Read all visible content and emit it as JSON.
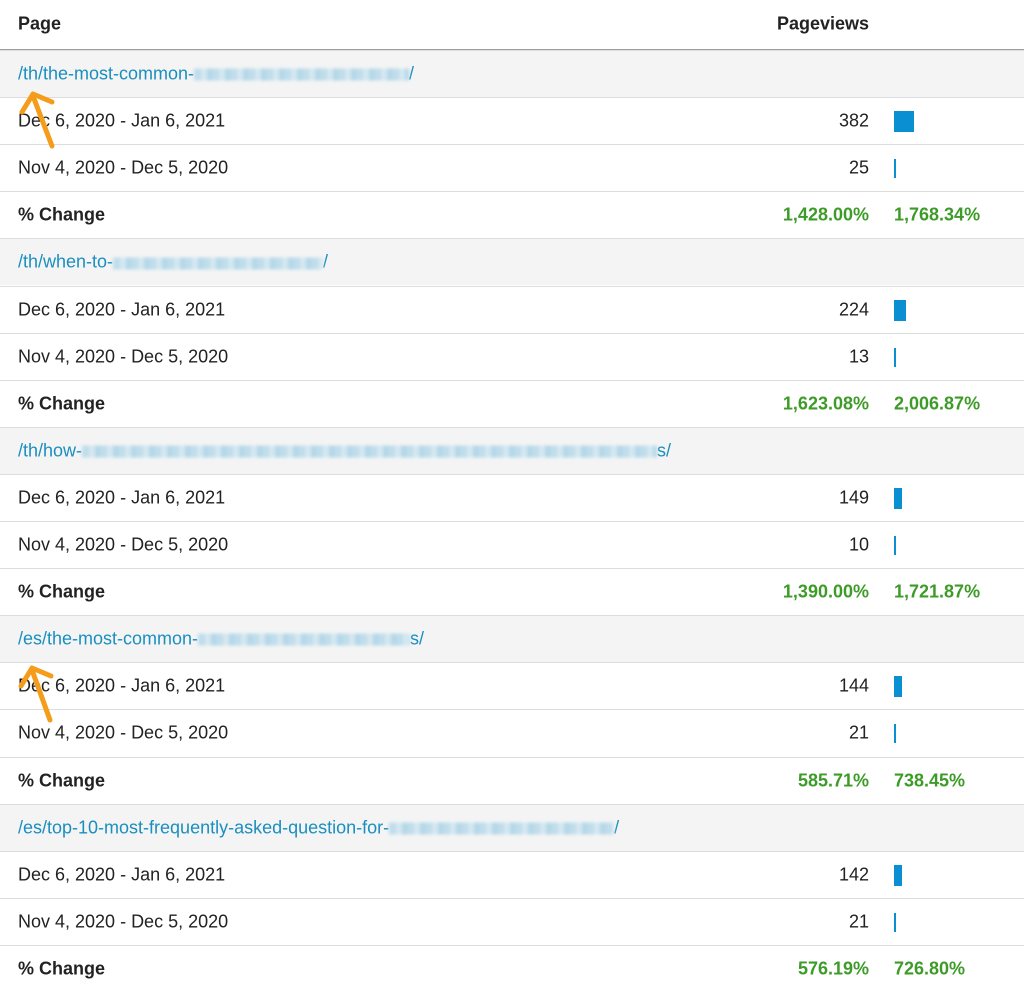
{
  "header": {
    "page": "Page",
    "pageviews": "Pageviews"
  },
  "groups": [
    {
      "path_start": "/th/the-most-common-",
      "path_end": "/",
      "rows": [
        {
          "date_range": "Dec 6, 2020 - Jan 6, 2021",
          "pageviews": 382
        },
        {
          "date_range": "Nov 4, 2020 - Dec 5, 2020",
          "pageviews": 25
        }
      ],
      "change": {
        "label": "% Change",
        "values": [
          "1,428.00%",
          "1,768.34%"
        ]
      }
    },
    {
      "path_start": "/th/when-to-",
      "path_end": "/",
      "rows": [
        {
          "date_range": "Dec 6, 2020 - Jan 6, 2021",
          "pageviews": 224
        },
        {
          "date_range": "Nov 4, 2020 - Dec 5, 2020",
          "pageviews": 13
        }
      ],
      "change": {
        "label": "% Change",
        "values": [
          "1,623.08%",
          "2,006.87%"
        ]
      }
    },
    {
      "path_start": "/th/how-",
      "path_end": "s/",
      "rows": [
        {
          "date_range": "Dec 6, 2020 - Jan 6, 2021",
          "pageviews": 149
        },
        {
          "date_range": "Nov 4, 2020 - Dec 5, 2020",
          "pageviews": 10
        }
      ],
      "change": {
        "label": "% Change",
        "values": [
          "1,390.00%",
          "1,721.87%"
        ]
      }
    },
    {
      "path_start": "/es/the-most-common-",
      "path_end": "s/",
      "rows": [
        {
          "date_range": "Dec 6, 2020 - Jan 6, 2021",
          "pageviews": 144
        },
        {
          "date_range": "Nov 4, 2020 - Dec 5, 2020",
          "pageviews": 21
        }
      ],
      "change": {
        "label": "% Change",
        "values": [
          "585.71%",
          "738.45%"
        ]
      }
    },
    {
      "path_start": "/es/top-10-most-frequently-asked-question-for-",
      "path_end": "/",
      "rows": [
        {
          "date_range": "Dec 6, 2020 - Jan 6, 2021",
          "pageviews": 142
        },
        {
          "date_range": "Nov 4, 2020 - Dec 5, 2020",
          "pageviews": 21
        }
      ],
      "change": {
        "label": "% Change",
        "values": [
          "576.19%",
          "726.80%"
        ]
      }
    }
  ]
}
